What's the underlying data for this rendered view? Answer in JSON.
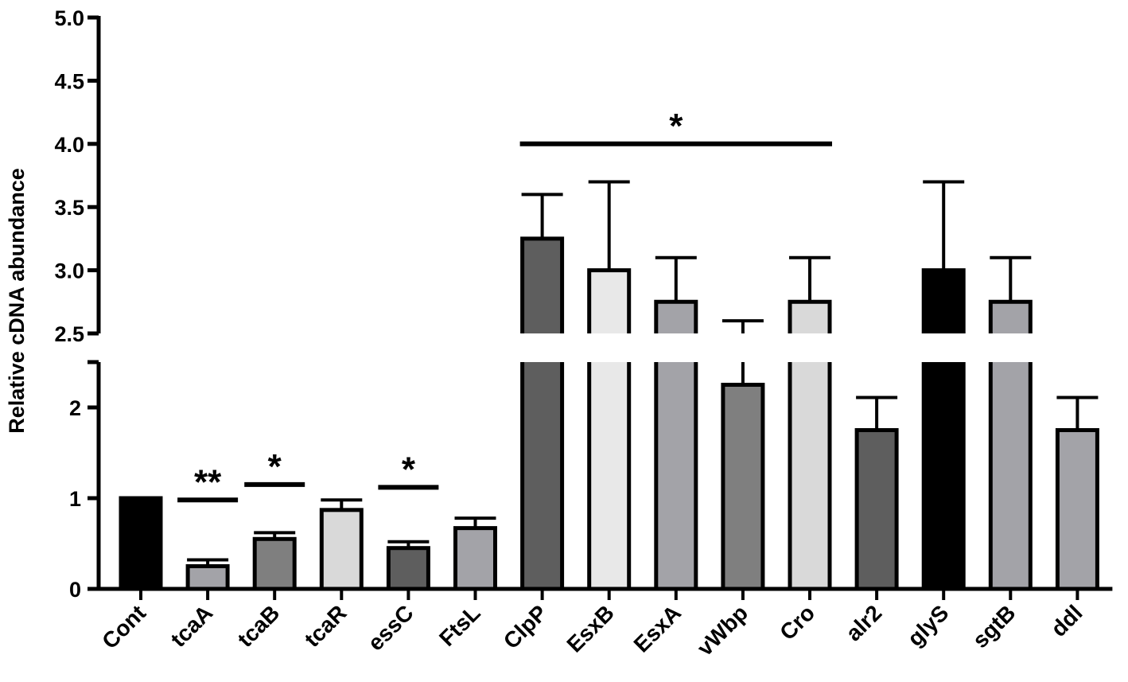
{
  "chart_data": {
    "type": "bar",
    "title": "",
    "xlabel": "",
    "ylabel": "Relative cDNA abundance",
    "axis_break": {
      "lower_range": [
        0,
        2.5
      ],
      "upper_range": [
        2.5,
        5.0
      ]
    },
    "lower_ticks": [
      "0",
      "1",
      "2"
    ],
    "upper_ticks": [
      "2.5",
      "3.0",
      "3.5",
      "4.0",
      "4.5",
      "5.0"
    ],
    "categories": [
      "Cont",
      "tcaA",
      "tcaB",
      "tcaR",
      "essC",
      "FtsL",
      "ClpP",
      "EsxB",
      "EsxA",
      "vWbp",
      "Cro",
      "alr2",
      "glyS",
      "sgtB",
      "ddl"
    ],
    "values": [
      1.0,
      0.25,
      0.55,
      0.87,
      0.45,
      0.67,
      3.25,
      3.0,
      2.75,
      2.25,
      2.75,
      1.75,
      3.0,
      2.75,
      1.75
    ],
    "errors": [
      0,
      0.07,
      0.07,
      0.11,
      0.07,
      0.11,
      0.35,
      0.7,
      0.35,
      0.35,
      0.35,
      0.36,
      0.7,
      0.35,
      0.36
    ],
    "colors": [
      "#000000",
      "#a3a3a8",
      "#7f7f7f",
      "#d9d9d9",
      "#5e5e5e",
      "#a3a3a8",
      "#5e5e5e",
      "#e8e8e8",
      "#a3a3a8",
      "#7f7f7f",
      "#d9d9d9",
      "#5e5e5e",
      "#000000",
      "#a3a3a8",
      "#a3a3a8"
    ],
    "significance": [
      {
        "label": "**",
        "from": 1,
        "to": 1,
        "y": 0.98
      },
      {
        "label": "*",
        "from": 2,
        "to": 2,
        "y": 1.15
      },
      {
        "label": "*",
        "from": 4,
        "to": 4,
        "y": 1.12
      },
      {
        "label": "*",
        "from": 6,
        "to": 10,
        "y": 4.0
      }
    ]
  }
}
